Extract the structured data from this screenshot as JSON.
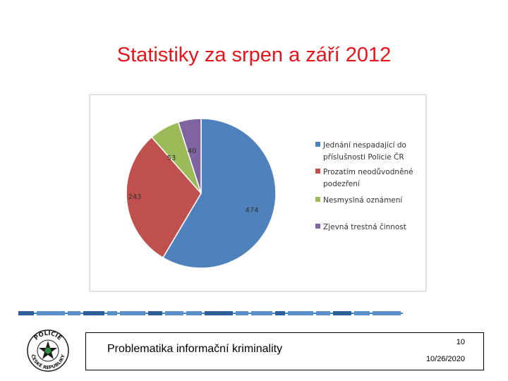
{
  "slide": {
    "title": "Statistiky za srpen a září 2012",
    "footer_text": "Problematika informační kriminality",
    "page_number": "10",
    "date": "10/26/2020"
  },
  "seal": {
    "text_top": "POLICIE",
    "text_bottom": "ČESKÉ REPUBLIKY"
  },
  "chart_data": {
    "type": "pie",
    "title": "",
    "slices": [
      {
        "label": "Jednání nespadající do příslušnosti Policie ČR",
        "value": 474,
        "color": "#4f81bd"
      },
      {
        "label": "Prozatím neodůvodněné podezření",
        "value": 243,
        "color": "#c0504d"
      },
      {
        "label": "Nesmyslná oznámení",
        "value": 53,
        "color": "#9bbb59"
      },
      {
        "label": "Zjevná trestná činnost",
        "value": 40,
        "color": "#8064a2"
      }
    ],
    "legend_position": "right",
    "legend_lines": [
      [
        "Jednání nespadající do",
        "příslušnosti Policie ČR"
      ],
      [
        "Prozatím neodůvodněné",
        "podezření"
      ],
      [
        "Nesmyslná oznámení"
      ],
      [
        "Zjevná trestná činnost"
      ]
    ]
  }
}
